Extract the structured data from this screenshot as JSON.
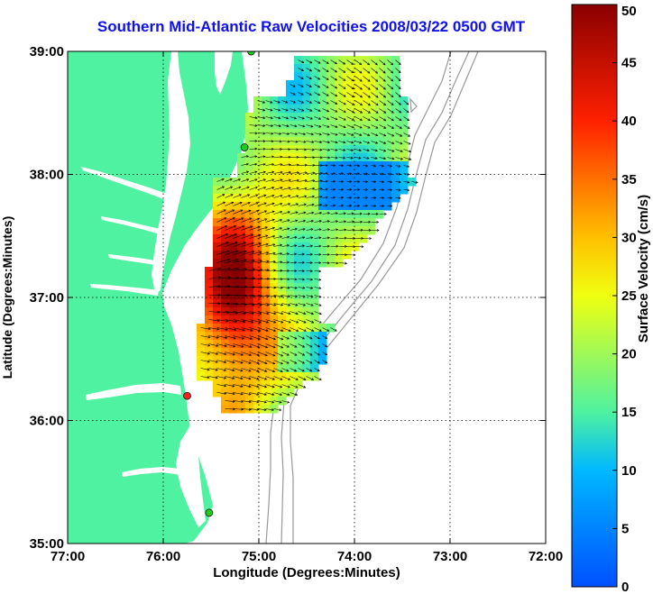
{
  "title": "Southern Mid-Atlantic Raw Velocities 2008/03/22 0500 GMT",
  "map": {
    "xlabel": "Longitude (Degrees:Minutes)",
    "ylabel": "Latitude (Degrees:Minutes)",
    "lon_range": [
      -77,
      -72
    ],
    "lat_range": [
      35,
      39
    ],
    "lon_ticks": [
      {
        "value": -77,
        "label": "77:00"
      },
      {
        "value": -76,
        "label": "76:00"
      },
      {
        "value": -75,
        "label": "75:00"
      },
      {
        "value": -74,
        "label": "74:00"
      },
      {
        "value": -73,
        "label": "73:00"
      },
      {
        "value": -72,
        "label": "72:00"
      }
    ],
    "lat_ticks": [
      {
        "value": 35,
        "label": "35:00"
      },
      {
        "value": 36,
        "label": "36:00"
      },
      {
        "value": 37,
        "label": "37:00"
      },
      {
        "value": 38,
        "label": "38:00"
      },
      {
        "value": 39,
        "label": "39:00"
      }
    ],
    "grid": "dotted",
    "colors": {
      "land": "#4ef2a0",
      "water": "#ffffff",
      "frame": "#000000",
      "bathymetry": "#999999",
      "arrows": "#000000"
    },
    "stations": [
      {
        "lon": -75.08,
        "lat": 39.0,
        "color": "#22cc22"
      },
      {
        "lon": -75.15,
        "lat": 38.22,
        "color": "#22cc22"
      },
      {
        "lon": -75.75,
        "lat": 36.2,
        "color": "#ee2222"
      },
      {
        "lon": -75.52,
        "lat": 35.25,
        "color": "#22cc22"
      }
    ]
  },
  "colorbar": {
    "label": "Surface Velocity (cm/s)",
    "range": [
      0,
      50
    ],
    "ticks": [
      "0",
      "5",
      "10",
      "15",
      "20",
      "25",
      "30",
      "35",
      "40",
      "45",
      "50"
    ],
    "colormap": "jet"
  }
}
